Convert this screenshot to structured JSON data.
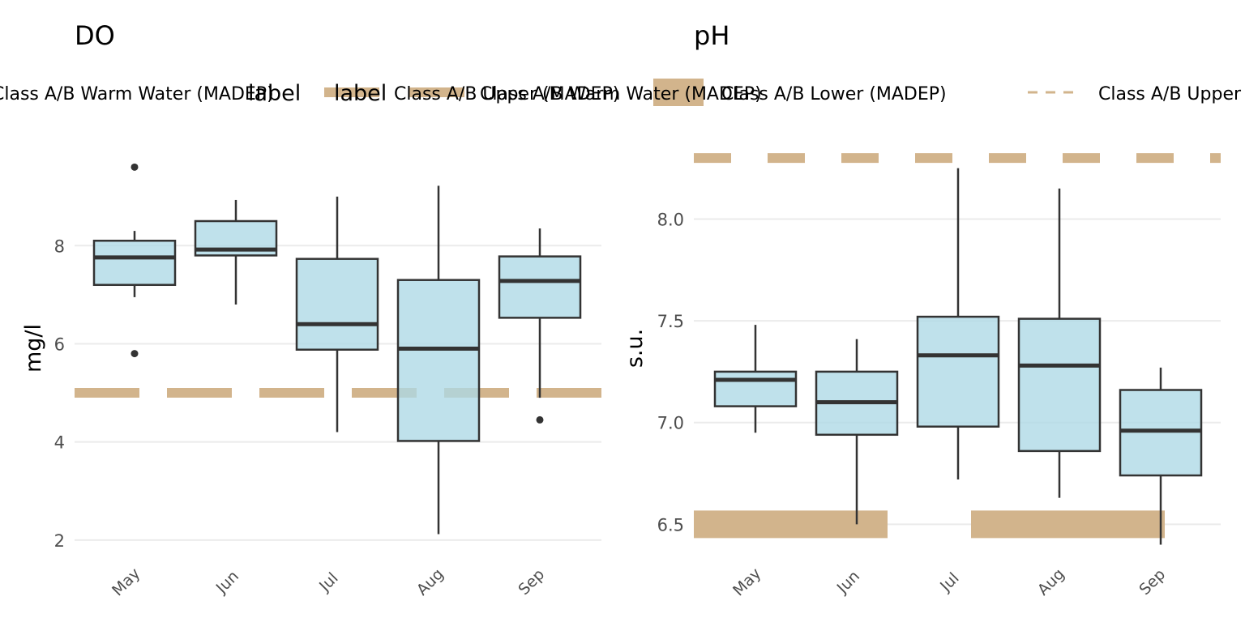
{
  "colors": {
    "box_fill": "#add8e6",
    "box_stroke": "#333333",
    "reference": "#d2b48c",
    "grid": "#ebebeb",
    "outlier": "#333333"
  },
  "legend": {
    "title_left": "label",
    "title_right": "label",
    "entries": [
      {
        "text": "Class A/B Warm Water (MADEP)",
        "style": "dashed"
      },
      {
        "text": "Class A/B Upper (MADEP)",
        "style": "solid-thin"
      },
      {
        "text": "Class A/B Warm Water (MADEP)",
        "style": "solid-thin"
      },
      {
        "text": "Class A/B Lower (MADEP)",
        "style": "solid-thick"
      },
      {
        "text": "Class A/B Upper (MADEP)",
        "style": "dashed"
      }
    ]
  },
  "chart_data": [
    {
      "type": "boxplot",
      "title": "DO",
      "ylabel": "mg/l",
      "xlabel": "",
      "ylim": [
        1.7,
        10.2
      ],
      "yticks": [
        2,
        4,
        6,
        8
      ],
      "grid": true,
      "categories": [
        "May",
        "Jun",
        "Jul",
        "Aug",
        "Sep"
      ],
      "boxes": [
        {
          "min": 6.95,
          "q1": 7.2,
          "median": 7.76,
          "q3": 8.1,
          "max": 8.3,
          "outliers": [
            9.6,
            5.8
          ]
        },
        {
          "min": 6.8,
          "q1": 7.8,
          "median": 7.92,
          "q3": 8.5,
          "max": 8.93,
          "outliers": []
        },
        {
          "min": 4.2,
          "q1": 5.88,
          "median": 6.4,
          "q3": 7.73,
          "max": 9.0,
          "outliers": []
        },
        {
          "min": 2.12,
          "q1": 4.02,
          "median": 5.9,
          "q3": 7.3,
          "max": 9.22,
          "outliers": []
        },
        {
          "min": 4.9,
          "q1": 6.53,
          "median": 7.28,
          "q3": 7.78,
          "max": 8.35,
          "outliers": [
            4.45
          ]
        }
      ],
      "reference_lines": [
        {
          "label": "Class A/B Warm Water (MADEP)",
          "value": 5.0,
          "style": "dashed",
          "x_from": "May",
          "x_to": "Sep"
        }
      ]
    },
    {
      "type": "boxplot",
      "title": "pH",
      "ylabel": "s.u.",
      "xlabel": "",
      "ylim": [
        6.35,
        8.4
      ],
      "yticks": [
        6.5,
        7.0,
        7.5,
        8.0
      ],
      "ytick_labels": [
        "6.5",
        "7.0",
        "7.5",
        "8.0"
      ],
      "grid": true,
      "categories": [
        "May",
        "Jun",
        "Jul",
        "Aug",
        "Sep"
      ],
      "boxes": [
        {
          "min": 6.95,
          "q1": 7.08,
          "median": 7.21,
          "q3": 7.25,
          "max": 7.48,
          "outliers": []
        },
        {
          "min": 6.5,
          "q1": 6.94,
          "median": 7.1,
          "q3": 7.25,
          "max": 7.41,
          "outliers": []
        },
        {
          "min": 6.72,
          "q1": 6.98,
          "median": 7.33,
          "q3": 7.52,
          "max": 8.25,
          "outliers": []
        },
        {
          "min": 6.63,
          "q1": 6.86,
          "median": 7.28,
          "q3": 7.51,
          "max": 8.15,
          "outliers": []
        },
        {
          "min": 6.4,
          "q1": 6.74,
          "median": 6.96,
          "q3": 7.16,
          "max": 7.27,
          "outliers": []
        }
      ],
      "reference_lines": [
        {
          "label": "Class A/B Upper (MADEP)",
          "value": 8.3,
          "style": "dashed",
          "x_from": "left",
          "x_to": "right"
        },
        {
          "label": "Class A/B Lower (MADEP)",
          "value": 6.5,
          "style": "solid-thick",
          "x_from": "May",
          "x_to": "Jun"
        },
        {
          "label": "Class A/B Lower (MADEP)",
          "value": 6.5,
          "style": "solid-thick",
          "x_from": "Jul",
          "x_to": "Sep"
        }
      ]
    }
  ]
}
